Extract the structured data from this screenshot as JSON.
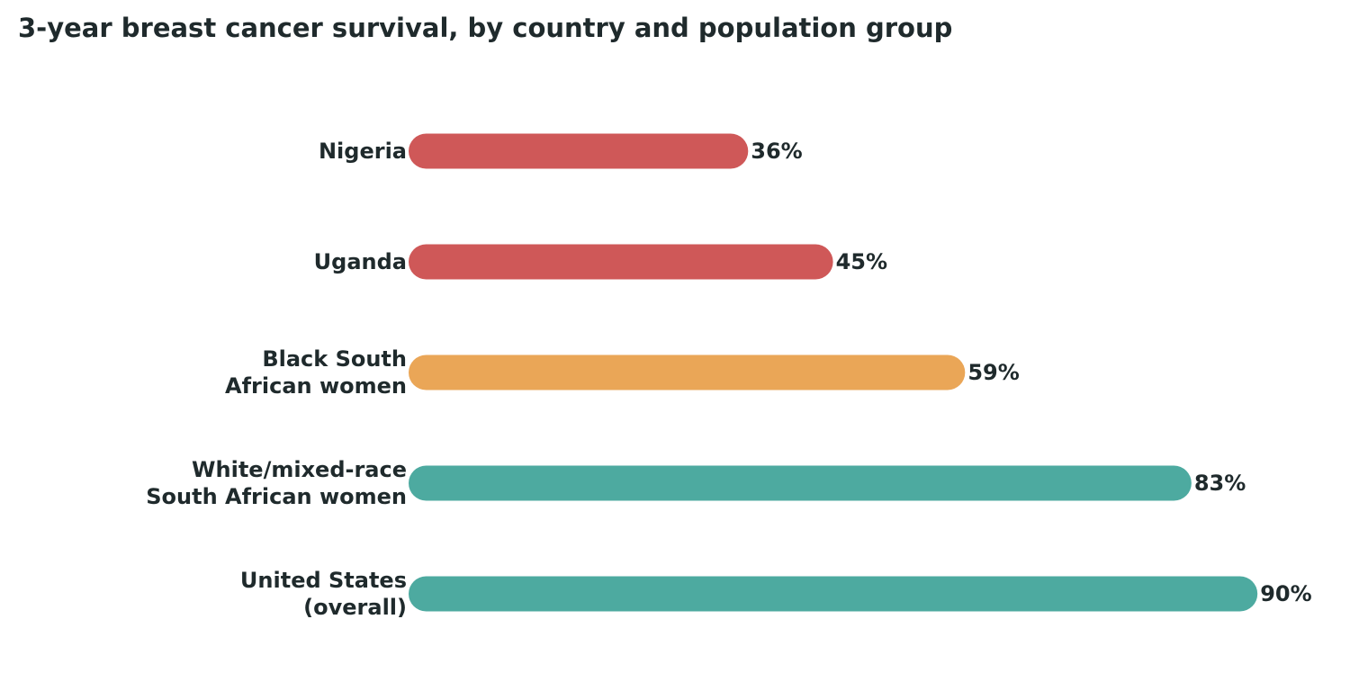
{
  "chart_data": {
    "type": "bar",
    "orientation": "horizontal",
    "title": "3-year breast cancer survival, by country and population group",
    "xlabel": "",
    "ylabel": "",
    "grid": false,
    "value_suffix": "%",
    "xlim": [
      0,
      100
    ],
    "categories": [
      [
        "Nigeria"
      ],
      [
        "Uganda"
      ],
      [
        "Black South",
        "African women"
      ],
      [
        "White/mixed-race",
        "South African women"
      ],
      [
        "United States",
        "(overall)"
      ]
    ],
    "values": [
      36,
      45,
      59,
      83,
      90
    ],
    "value_labels": [
      "36%",
      "45%",
      "59%",
      "83%",
      "90%"
    ],
    "bar_colors": [
      "#cf5858",
      "#cf5858",
      "#eaa657",
      "#4daaa0",
      "#4daaa0"
    ]
  }
}
